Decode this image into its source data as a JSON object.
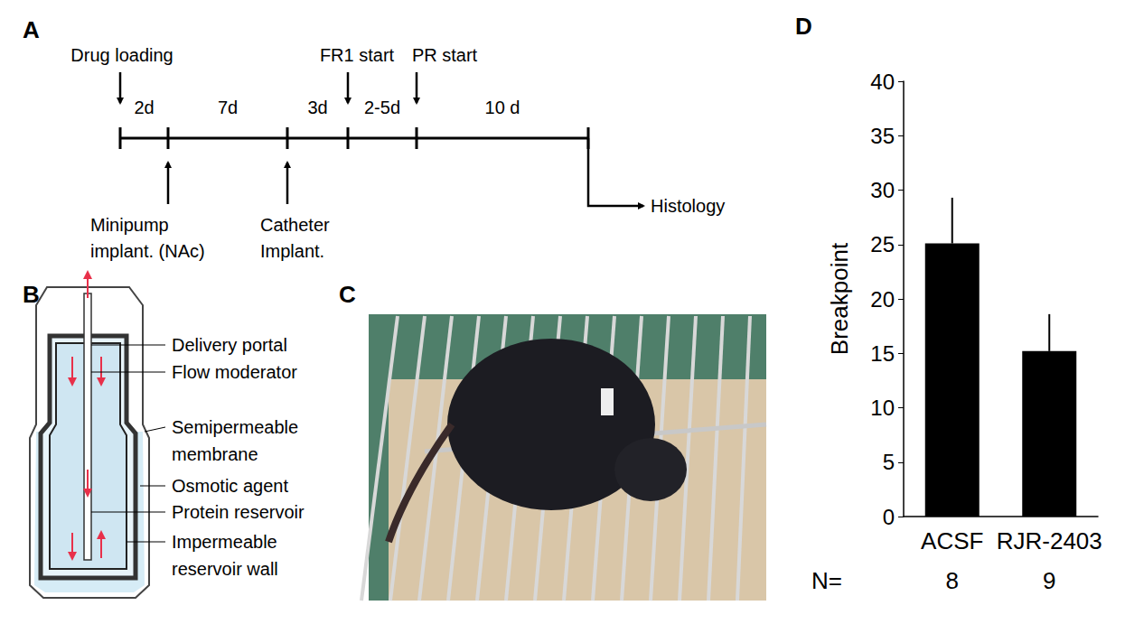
{
  "panels": {
    "A": {
      "label": "A",
      "intervals": [
        "2d",
        "7d",
        "3d",
        "2-5d",
        "10 d"
      ],
      "events_above": [
        "Drug loading",
        "FR1 start",
        "PR start"
      ],
      "events_below": [
        [
          "Minipump",
          "implant. (NAc)"
        ],
        [
          "Catheter",
          "Implant."
        ]
      ],
      "end": "Histology"
    },
    "B": {
      "label": "B",
      "parts": [
        [
          "Delivery portal"
        ],
        [
          "Flow moderator"
        ],
        [
          "Semipermeable",
          "membrane"
        ],
        [
          "Osmotic agent"
        ],
        [
          "Protein reservoir"
        ],
        [
          "Impermeable",
          "reservoir wall"
        ]
      ]
    },
    "C": {
      "label": "C"
    }
  },
  "chart_data": {
    "type": "bar",
    "panel_label": "D",
    "categories": [
      "ACSF",
      "RJR-2403"
    ],
    "values": [
      25.1,
      15.2
    ],
    "error": [
      4.2,
      3.4
    ],
    "color": "#000000",
    "ylabel": "Breakpoint",
    "ylim": [
      0,
      40
    ],
    "yticks": [
      0,
      5,
      10,
      15,
      20,
      25,
      30,
      35,
      40
    ],
    "grid": false,
    "n_label": "N=",
    "n": [
      8,
      9
    ]
  }
}
